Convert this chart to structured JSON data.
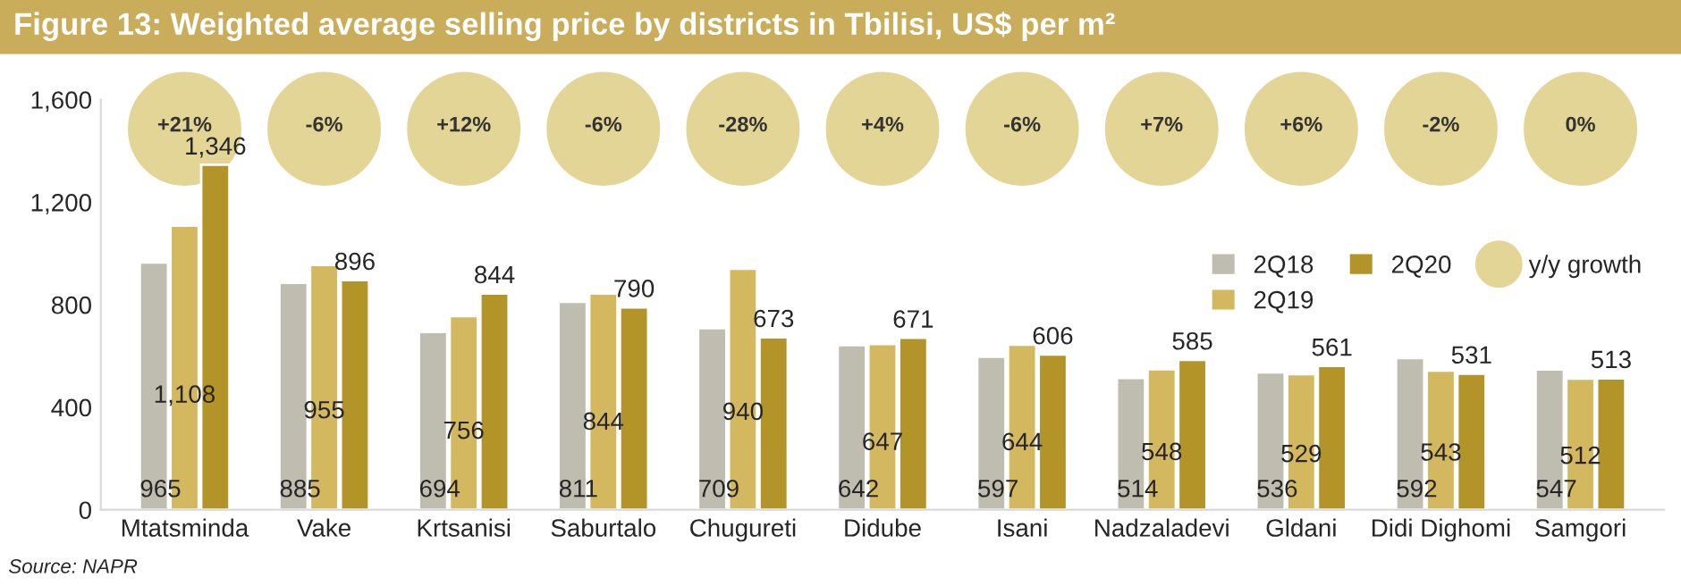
{
  "chart_data": {
    "type": "bar",
    "title": "Figure 13: Weighted average selling price by districts in Tbilisi, US$ per m²",
    "categories": [
      "Mtatsminda",
      "Vake",
      "Krtsanisi",
      "Saburtalo",
      "Chugureti",
      "Didube",
      "Isani",
      "Nadzaladevi",
      "Gldani",
      "Didi Dighomi",
      "Samgori"
    ],
    "series": [
      {
        "name": "2Q18",
        "color": "#bfbcb0",
        "values": [
          965,
          885,
          694,
          811,
          709,
          642,
          597,
          514,
          536,
          592,
          547
        ],
        "value_labels": [
          "965",
          "885",
          "694",
          "811",
          "709",
          "642",
          "597",
          "514",
          "536",
          "592",
          "547"
        ]
      },
      {
        "name": "2Q19",
        "color": "#d4b860",
        "values": [
          1108,
          955,
          756,
          844,
          940,
          647,
          644,
          548,
          529,
          543,
          512
        ],
        "value_labels": [
          "1,108",
          "955",
          "756",
          "844",
          "940",
          "647",
          "644",
          "548",
          "529",
          "543",
          "512"
        ]
      },
      {
        "name": "2Q20",
        "color": "#b39428",
        "values": [
          1346,
          896,
          844,
          790,
          673,
          671,
          606,
          585,
          561,
          531,
          513
        ],
        "value_labels": [
          "1,346",
          "896",
          "844",
          "790",
          "673",
          "671",
          "606",
          "585",
          "561",
          "531",
          "513"
        ]
      }
    ],
    "ylim": [
      0,
      1600
    ],
    "yticks": [
      0,
      {
        "value": 400,
        "label": "400"
      },
      {
        "value": 800,
        "label": "800"
      },
      {
        "value": 1200,
        "label": "1,200"
      },
      {
        "value": 1600,
        "label": "1,600"
      }
    ],
    "grid": false,
    "legend": "right",
    "annotations": [
      "+21%",
      "-6%",
      "+12%",
      "-6%",
      "-28%",
      "+4%",
      "-6%",
      "+7%",
      "+6%",
      "-2%",
      "0%",
      "y/y growth",
      "Source: NAPR"
    ]
  }
}
